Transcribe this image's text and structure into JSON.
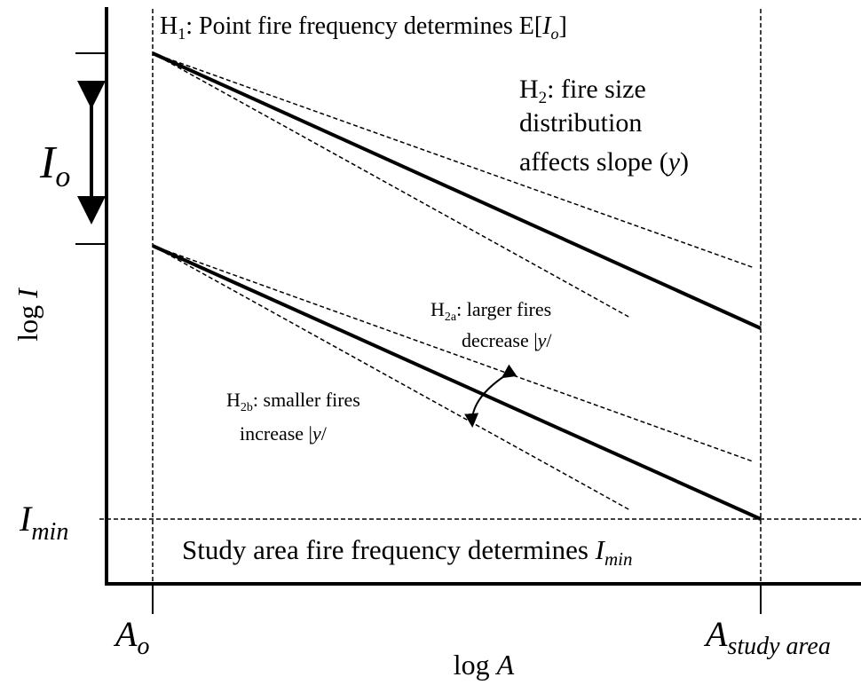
{
  "h1": {
    "h": "H",
    "sub": "1",
    "text": ": Point fire frequency determines E[",
    "var": "I",
    "var_sub": "o",
    "end": "]"
  },
  "h2": {
    "h": "H",
    "sub": "2",
    "line1": ": fire size",
    "line2": "distribution",
    "line3": "affects slope (",
    "var": "y",
    "end": ")"
  },
  "h2a": {
    "h": "H",
    "sub": "2a",
    "line1": ": larger fires",
    "line2": "decrease |",
    "var": "y",
    "end": "/"
  },
  "h2b": {
    "h": "H",
    "sub": "2b",
    "line1": ": smaller fires",
    "line2": "increase |",
    "var": "y",
    "end": "/"
  },
  "study_area": {
    "text": "Study area fire frequency determines ",
    "var": "I",
    "var_sub": "min"
  },
  "y_axis": {
    "label": "log ",
    "var": "I",
    "io": "I",
    "io_sub": "o",
    "imin": "I",
    "imin_sub": "min"
  },
  "x_axis": {
    "label": "log ",
    "var": "A",
    "ao": "A",
    "ao_sub": "o",
    "as": "A",
    "as_sub": "study area"
  }
}
